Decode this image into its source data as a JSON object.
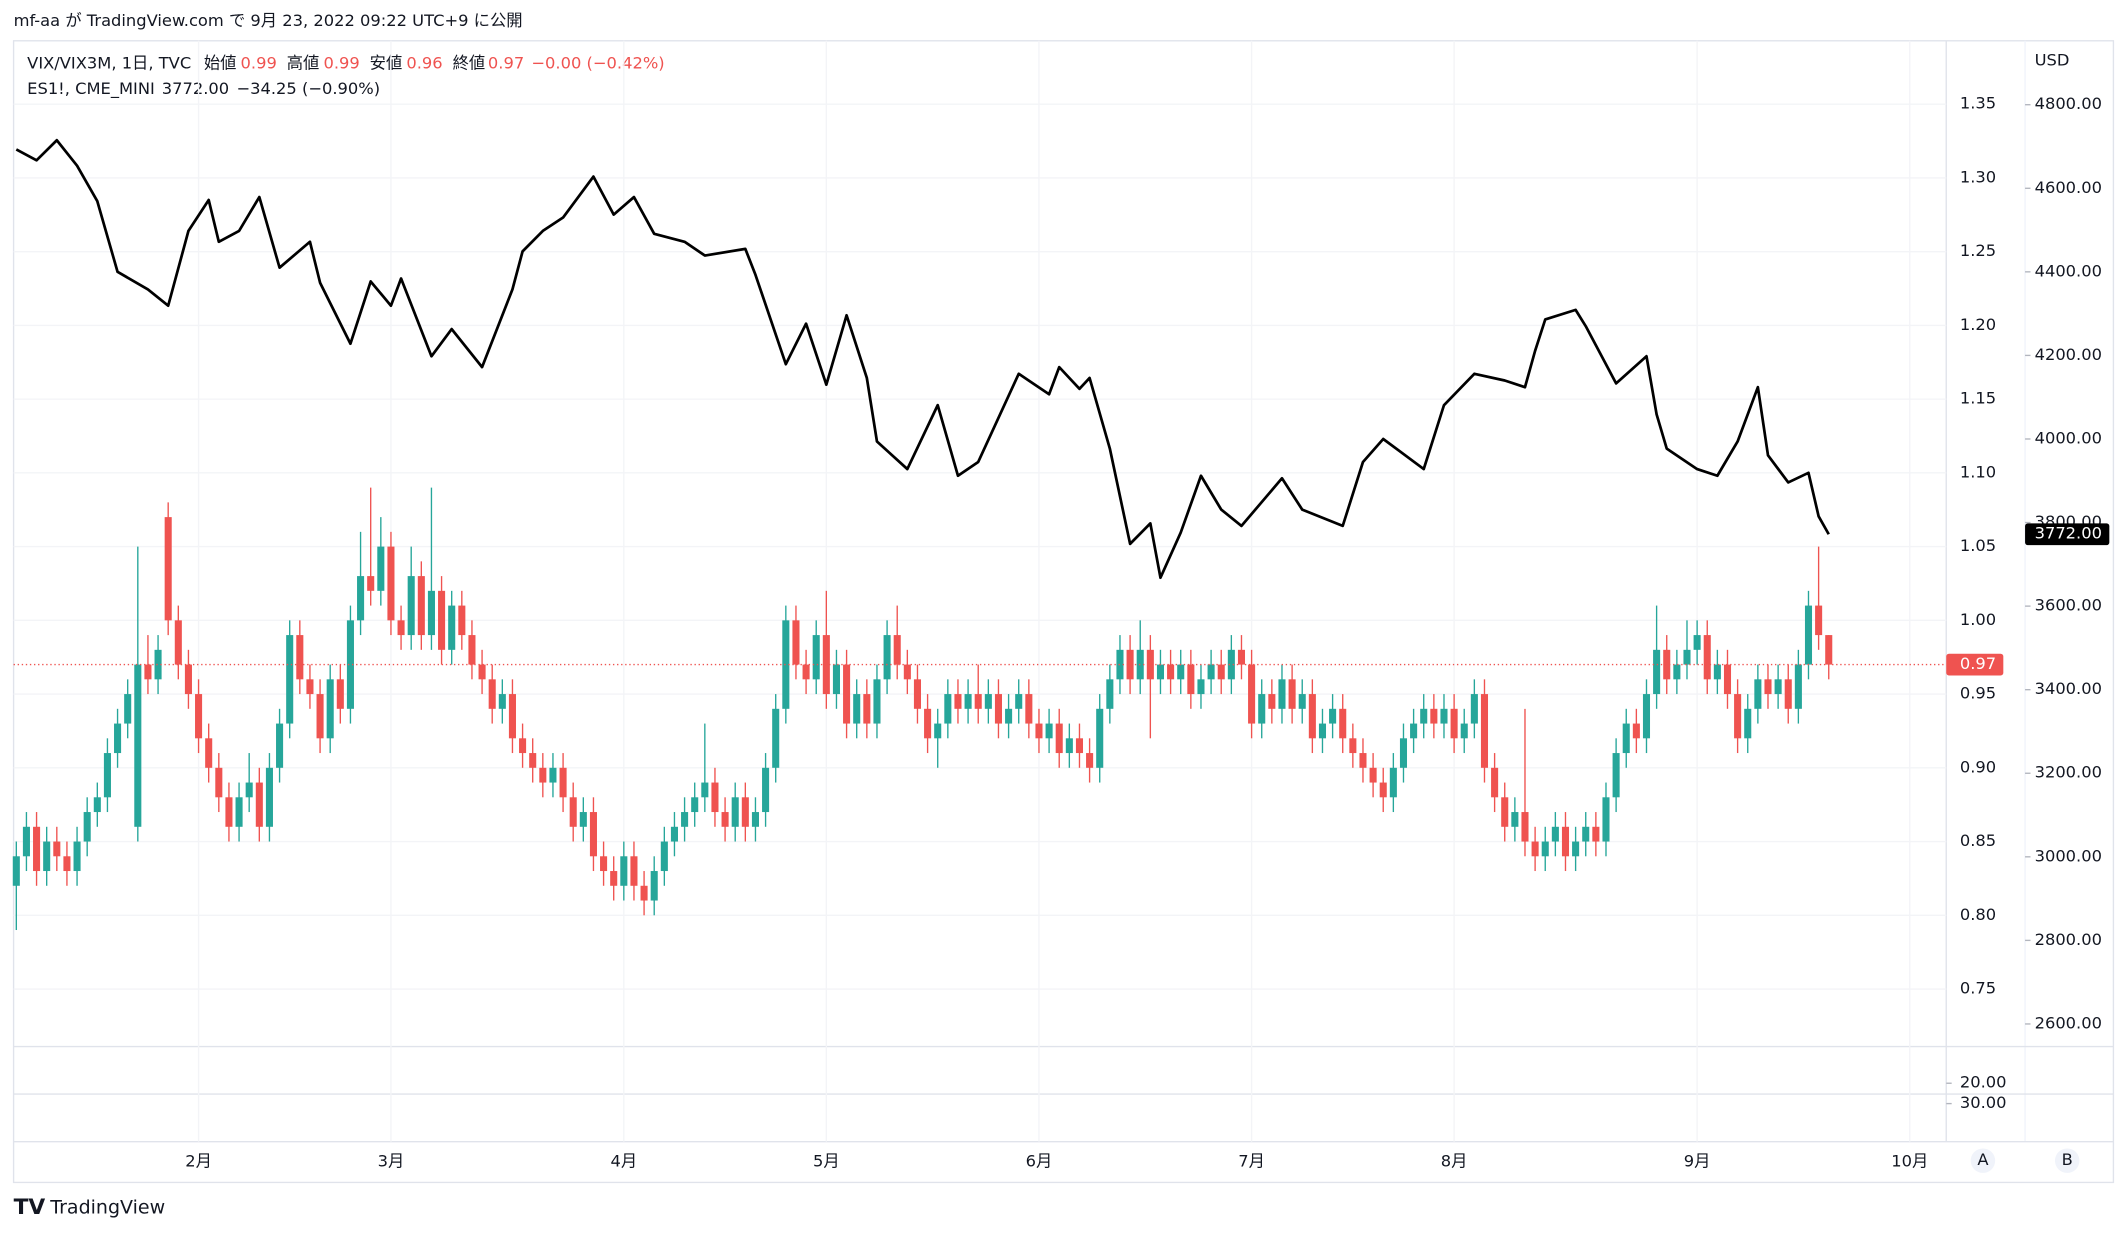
{
  "header": {
    "publish": "mf-aa が TradingView.com で 9月 23, 2022 09:22 UTC+9 に公開",
    "brand": "TradingView",
    "buttons": [
      "A",
      "B"
    ]
  },
  "chart_data": {
    "type": "candlestick",
    "legend": {
      "open": "始値",
      "high": "高値",
      "low": "安値",
      "close": "終値",
      "change": "−0.00 (−0.42%)"
    },
    "name": "VIX/VIX3M, 1日, TVC",
    "up_color": "#26a69a",
    "down_color": "#ef5350",
    "axis_label": "USD",
    "ylim": [
      0.711,
      1.393
    ],
    "yticks": [
      {
        "value": 0.75,
        "label": "0.75"
      },
      {
        "value": 0.8,
        "label": "0.80"
      },
      {
        "value": 0.85,
        "label": "0.85"
      },
      {
        "value": 0.9,
        "label": "0.90"
      },
      {
        "value": 0.95,
        "label": "0.95"
      },
      {
        "value": 1.0,
        "label": "1.00"
      },
      {
        "value": 1.05,
        "label": "1.05"
      },
      {
        "value": 1.1,
        "label": "1.10"
      },
      {
        "value": 1.15,
        "label": "1.15"
      },
      {
        "value": 1.2,
        "label": "1.20"
      },
      {
        "value": 1.25,
        "label": "1.25"
      },
      {
        "value": 1.3,
        "label": "1.30"
      },
      {
        "value": 1.35,
        "label": "1.35"
      }
    ],
    "y2lim": [
      2546,
      4953
    ],
    "y2ticks": [
      {
        "value": 2600,
        "label": "2600.00"
      },
      {
        "value": 2800,
        "label": "2800.00"
      },
      {
        "value": 3000,
        "label": "3000.00"
      },
      {
        "value": 3200,
        "label": "3200.00"
      },
      {
        "value": 3400,
        "label": "3400.00"
      },
      {
        "value": 3600,
        "label": "3600.00"
      },
      {
        "value": 3800,
        "label": "3800.00"
      },
      {
        "value": 4000,
        "label": "4000.00"
      },
      {
        "value": 4200,
        "label": "4200.00"
      },
      {
        "value": 4400,
        "label": "4400.00"
      },
      {
        "value": 4600,
        "label": "4600.00"
      },
      {
        "value": 4800,
        "label": "4800.00"
      }
    ],
    "xticks": [
      {
        "value": 18,
        "label": "2月"
      },
      {
        "value": 37,
        "label": "3月"
      },
      {
        "value": 60,
        "label": "4月"
      },
      {
        "value": 80,
        "label": "5月"
      },
      {
        "value": 101,
        "label": "6月"
      },
      {
        "value": 122,
        "label": "7月"
      },
      {
        "value": 142,
        "label": "8月"
      },
      {
        "value": 166,
        "label": "9月"
      },
      {
        "value": 187,
        "label": "10月"
      }
    ],
    "candles": [
      [
        0.82,
        0.85,
        0.79,
        0.84
      ],
      [
        0.84,
        0.87,
        0.83,
        0.86
      ],
      [
        0.86,
        0.87,
        0.82,
        0.83
      ],
      [
        0.83,
        0.86,
        0.82,
        0.85
      ],
      [
        0.85,
        0.86,
        0.83,
        0.84
      ],
      [
        0.84,
        0.85,
        0.82,
        0.83
      ],
      [
        0.83,
        0.86,
        0.82,
        0.85
      ],
      [
        0.85,
        0.88,
        0.84,
        0.87
      ],
      [
        0.87,
        0.89,
        0.86,
        0.88
      ],
      [
        0.88,
        0.92,
        0.87,
        0.91
      ],
      [
        0.91,
        0.94,
        0.9,
        0.93
      ],
      [
        0.93,
        0.96,
        0.92,
        0.95
      ],
      [
        0.86,
        1.05,
        0.85,
        0.97
      ],
      [
        0.97,
        0.99,
        0.95,
        0.96
      ],
      [
        0.96,
        0.99,
        0.95,
        0.98
      ],
      [
        1.07,
        1.08,
        0.99,
        1.0
      ],
      [
        1.0,
        1.01,
        0.96,
        0.97
      ],
      [
        0.97,
        0.98,
        0.94,
        0.95
      ],
      [
        0.95,
        0.96,
        0.91,
        0.92
      ],
      [
        0.92,
        0.93,
        0.89,
        0.9
      ],
      [
        0.9,
        0.91,
        0.87,
        0.88
      ],
      [
        0.88,
        0.89,
        0.85,
        0.86
      ],
      [
        0.86,
        0.89,
        0.85,
        0.88
      ],
      [
        0.88,
        0.91,
        0.87,
        0.89
      ],
      [
        0.89,
        0.9,
        0.85,
        0.86
      ],
      [
        0.86,
        0.91,
        0.85,
        0.9
      ],
      [
        0.9,
        0.94,
        0.89,
        0.93
      ],
      [
        0.93,
        1.0,
        0.92,
        0.99
      ],
      [
        0.99,
        1.0,
        0.95,
        0.96
      ],
      [
        0.96,
        0.97,
        0.94,
        0.95
      ],
      [
        0.95,
        0.96,
        0.91,
        0.92
      ],
      [
        0.92,
        0.97,
        0.91,
        0.96
      ],
      [
        0.96,
        0.97,
        0.93,
        0.94
      ],
      [
        0.94,
        1.01,
        0.93,
        1.0
      ],
      [
        1.0,
        1.06,
        0.99,
        1.03
      ],
      [
        1.03,
        1.09,
        1.01,
        1.02
      ],
      [
        1.02,
        1.07,
        1.01,
        1.05
      ],
      [
        1.05,
        1.06,
        0.99,
        1.0
      ],
      [
        1.0,
        1.01,
        0.98,
        0.99
      ],
      [
        0.99,
        1.05,
        0.98,
        1.03
      ],
      [
        1.03,
        1.04,
        0.98,
        0.99
      ],
      [
        0.99,
        1.09,
        0.98,
        1.02
      ],
      [
        1.02,
        1.03,
        0.97,
        0.98
      ],
      [
        0.98,
        1.02,
        0.97,
        1.01
      ],
      [
        1.01,
        1.02,
        0.98,
        0.99
      ],
      [
        0.99,
        1.0,
        0.96,
        0.97
      ],
      [
        0.97,
        0.98,
        0.95,
        0.96
      ],
      [
        0.96,
        0.97,
        0.93,
        0.94
      ],
      [
        0.94,
        0.96,
        0.93,
        0.95
      ],
      [
        0.95,
        0.96,
        0.91,
        0.92
      ],
      [
        0.92,
        0.93,
        0.9,
        0.91
      ],
      [
        0.91,
        0.92,
        0.89,
        0.9
      ],
      [
        0.9,
        0.91,
        0.88,
        0.89
      ],
      [
        0.89,
        0.91,
        0.88,
        0.9
      ],
      [
        0.9,
        0.91,
        0.87,
        0.88
      ],
      [
        0.88,
        0.89,
        0.85,
        0.86
      ],
      [
        0.86,
        0.88,
        0.85,
        0.87
      ],
      [
        0.87,
        0.88,
        0.83,
        0.84
      ],
      [
        0.84,
        0.85,
        0.82,
        0.83
      ],
      [
        0.83,
        0.84,
        0.81,
        0.82
      ],
      [
        0.82,
        0.85,
        0.81,
        0.84
      ],
      [
        0.84,
        0.85,
        0.81,
        0.82
      ],
      [
        0.82,
        0.83,
        0.8,
        0.81
      ],
      [
        0.81,
        0.84,
        0.8,
        0.83
      ],
      [
        0.83,
        0.86,
        0.82,
        0.85
      ],
      [
        0.85,
        0.87,
        0.84,
        0.86
      ],
      [
        0.86,
        0.88,
        0.85,
        0.87
      ],
      [
        0.87,
        0.89,
        0.86,
        0.88
      ],
      [
        0.88,
        0.93,
        0.87,
        0.89
      ],
      [
        0.89,
        0.9,
        0.86,
        0.87
      ],
      [
        0.87,
        0.88,
        0.85,
        0.86
      ],
      [
        0.86,
        0.89,
        0.85,
        0.88
      ],
      [
        0.88,
        0.89,
        0.85,
        0.86
      ],
      [
        0.86,
        0.88,
        0.85,
        0.87
      ],
      [
        0.87,
        0.91,
        0.86,
        0.9
      ],
      [
        0.9,
        0.95,
        0.89,
        0.94
      ],
      [
        0.94,
        1.01,
        0.93,
        1.0
      ],
      [
        1.0,
        1.01,
        0.96,
        0.97
      ],
      [
        0.97,
        0.98,
        0.95,
        0.96
      ],
      [
        0.96,
        1.0,
        0.95,
        0.99
      ],
      [
        0.99,
        1.02,
        0.94,
        0.95
      ],
      [
        0.95,
        0.98,
        0.94,
        0.97
      ],
      [
        0.97,
        0.98,
        0.92,
        0.93
      ],
      [
        0.93,
        0.96,
        0.92,
        0.95
      ],
      [
        0.95,
        0.96,
        0.92,
        0.93
      ],
      [
        0.93,
        0.97,
        0.92,
        0.96
      ],
      [
        0.96,
        1.0,
        0.95,
        0.99
      ],
      [
        0.99,
        1.01,
        0.96,
        0.97
      ],
      [
        0.97,
        0.98,
        0.95,
        0.96
      ],
      [
        0.96,
        0.97,
        0.93,
        0.94
      ],
      [
        0.94,
        0.95,
        0.91,
        0.92
      ],
      [
        0.92,
        0.94,
        0.9,
        0.93
      ],
      [
        0.93,
        0.96,
        0.92,
        0.95
      ],
      [
        0.95,
        0.96,
        0.93,
        0.94
      ],
      [
        0.94,
        0.96,
        0.93,
        0.95
      ],
      [
        0.95,
        0.97,
        0.93,
        0.94
      ],
      [
        0.94,
        0.96,
        0.93,
        0.95
      ],
      [
        0.95,
        0.96,
        0.92,
        0.93
      ],
      [
        0.93,
        0.95,
        0.92,
        0.94
      ],
      [
        0.94,
        0.96,
        0.93,
        0.95
      ],
      [
        0.95,
        0.96,
        0.92,
        0.93
      ],
      [
        0.93,
        0.94,
        0.91,
        0.92
      ],
      [
        0.92,
        0.94,
        0.91,
        0.93
      ],
      [
        0.93,
        0.94,
        0.9,
        0.91
      ],
      [
        0.91,
        0.93,
        0.9,
        0.92
      ],
      [
        0.92,
        0.93,
        0.9,
        0.91
      ],
      [
        0.91,
        0.92,
        0.89,
        0.9
      ],
      [
        0.9,
        0.95,
        0.89,
        0.94
      ],
      [
        0.94,
        0.97,
        0.93,
        0.96
      ],
      [
        0.96,
        0.99,
        0.95,
        0.98
      ],
      [
        0.98,
        0.99,
        0.95,
        0.96
      ],
      [
        0.96,
        1.0,
        0.95,
        0.98
      ],
      [
        0.98,
        0.99,
        0.92,
        0.96
      ],
      [
        0.96,
        0.98,
        0.95,
        0.97
      ],
      [
        0.97,
        0.98,
        0.95,
        0.96
      ],
      [
        0.96,
        0.98,
        0.95,
        0.97
      ],
      [
        0.97,
        0.98,
        0.94,
        0.95
      ],
      [
        0.95,
        0.97,
        0.94,
        0.96
      ],
      [
        0.96,
        0.98,
        0.95,
        0.97
      ],
      [
        0.97,
        0.98,
        0.95,
        0.96
      ],
      [
        0.96,
        0.99,
        0.95,
        0.98
      ],
      [
        0.98,
        0.99,
        0.96,
        0.97
      ],
      [
        0.97,
        0.98,
        0.92,
        0.93
      ],
      [
        0.93,
        0.96,
        0.92,
        0.95
      ],
      [
        0.95,
        0.96,
        0.93,
        0.94
      ],
      [
        0.94,
        0.97,
        0.93,
        0.96
      ],
      [
        0.96,
        0.97,
        0.93,
        0.94
      ],
      [
        0.94,
        0.96,
        0.93,
        0.95
      ],
      [
        0.95,
        0.96,
        0.91,
        0.92
      ],
      [
        0.92,
        0.94,
        0.91,
        0.93
      ],
      [
        0.93,
        0.95,
        0.92,
        0.94
      ],
      [
        0.94,
        0.95,
        0.91,
        0.92
      ],
      [
        0.92,
        0.93,
        0.9,
        0.91
      ],
      [
        0.91,
        0.92,
        0.89,
        0.9
      ],
      [
        0.9,
        0.91,
        0.88,
        0.89
      ],
      [
        0.89,
        0.9,
        0.87,
        0.88
      ],
      [
        0.88,
        0.91,
        0.87,
        0.9
      ],
      [
        0.9,
        0.93,
        0.89,
        0.92
      ],
      [
        0.92,
        0.94,
        0.91,
        0.93
      ],
      [
        0.93,
        0.95,
        0.92,
        0.94
      ],
      [
        0.94,
        0.95,
        0.92,
        0.93
      ],
      [
        0.93,
        0.95,
        0.92,
        0.94
      ],
      [
        0.94,
        0.95,
        0.91,
        0.92
      ],
      [
        0.92,
        0.94,
        0.91,
        0.93
      ],
      [
        0.93,
        0.96,
        0.92,
        0.95
      ],
      [
        0.95,
        0.96,
        0.89,
        0.9
      ],
      [
        0.9,
        0.91,
        0.87,
        0.88
      ],
      [
        0.88,
        0.89,
        0.85,
        0.86
      ],
      [
        0.86,
        0.88,
        0.85,
        0.87
      ],
      [
        0.87,
        0.94,
        0.84,
        0.85
      ],
      [
        0.85,
        0.86,
        0.83,
        0.84
      ],
      [
        0.84,
        0.86,
        0.83,
        0.85
      ],
      [
        0.85,
        0.87,
        0.84,
        0.86
      ],
      [
        0.86,
        0.87,
        0.83,
        0.84
      ],
      [
        0.84,
        0.86,
        0.83,
        0.85
      ],
      [
        0.85,
        0.87,
        0.84,
        0.86
      ],
      [
        0.86,
        0.87,
        0.84,
        0.85
      ],
      [
        0.85,
        0.89,
        0.84,
        0.88
      ],
      [
        0.88,
        0.92,
        0.87,
        0.91
      ],
      [
        0.91,
        0.94,
        0.9,
        0.93
      ],
      [
        0.93,
        0.94,
        0.91,
        0.92
      ],
      [
        0.92,
        0.96,
        0.91,
        0.95
      ],
      [
        0.95,
        1.01,
        0.94,
        0.98
      ],
      [
        0.98,
        0.99,
        0.95,
        0.96
      ],
      [
        0.96,
        0.98,
        0.95,
        0.97
      ],
      [
        0.97,
        1.0,
        0.96,
        0.98
      ],
      [
        0.98,
        1.0,
        0.97,
        0.99
      ],
      [
        0.99,
        1.0,
        0.95,
        0.96
      ],
      [
        0.96,
        0.98,
        0.95,
        0.97
      ],
      [
        0.97,
        0.98,
        0.94,
        0.95
      ],
      [
        0.95,
        0.96,
        0.91,
        0.92
      ],
      [
        0.92,
        0.95,
        0.91,
        0.94
      ],
      [
        0.94,
        0.97,
        0.93,
        0.96
      ],
      [
        0.96,
        0.97,
        0.94,
        0.95
      ],
      [
        0.95,
        0.97,
        0.94,
        0.96
      ],
      [
        0.96,
        0.97,
        0.93,
        0.94
      ],
      [
        0.94,
        0.98,
        0.93,
        0.97
      ],
      [
        0.97,
        1.02,
        0.96,
        1.01
      ],
      [
        1.01,
        1.05,
        0.98,
        0.99
      ],
      [
        0.99,
        0.99,
        0.96,
        0.97
      ]
    ],
    "overlay": {
      "type": "line",
      "name": "ES1!, CME_MINI",
      "color": "#000000",
      "axis": "y2",
      "change": "−34.25 (−0.90%)",
      "last_label": "3772.00",
      "x": [
        0,
        2,
        4,
        6,
        8,
        10,
        13,
        15,
        17,
        19,
        20,
        22,
        24,
        26,
        29,
        30,
        33,
        35,
        37,
        38,
        41,
        43,
        46,
        49,
        50,
        52,
        54,
        57,
        59,
        61,
        63,
        66,
        68,
        72,
        73,
        76,
        78,
        80,
        82,
        84,
        85,
        88,
        91,
        93,
        95,
        99,
        102,
        103,
        105,
        106,
        108,
        110,
        112,
        113,
        115,
        117,
        119,
        121,
        125,
        127,
        131,
        133,
        135,
        139,
        141,
        144,
        147,
        149,
        150,
        151,
        154,
        155,
        158,
        161,
        162,
        163,
        166,
        168,
        170,
        172,
        173,
        175,
        177,
        178,
        179
      ],
      "values": [
        4693,
        4667,
        4715,
        4654,
        4569,
        4400,
        4358,
        4319,
        4498,
        4572,
        4472,
        4498,
        4579,
        4410,
        4472,
        4374,
        4228,
        4377,
        4319,
        4384,
        4198,
        4263,
        4172,
        4358,
        4449,
        4498,
        4530,
        4628,
        4537,
        4579,
        4491,
        4472,
        4439,
        4455,
        4393,
        4179,
        4276,
        4130,
        4296,
        4146,
        3994,
        3928,
        4081,
        3912,
        3945,
        4156,
        4107,
        4172,
        4120,
        4146,
        3977,
        3749,
        3798,
        3668,
        3776,
        3912,
        3831,
        3792,
        3906,
        3831,
        3792,
        3945,
        4000,
        3928,
        4081,
        4156,
        4140,
        4124,
        4211,
        4286,
        4309,
        4270,
        4133,
        4198,
        4059,
        3977,
        3928,
        3912,
        3994,
        4124,
        3961,
        3896,
        3919,
        3815,
        3772
      ]
    },
    "lower_pane": {
      "ylim": [
        5.3,
        48.7
      ],
      "inverted": true,
      "yticks": [
        {
          "value": 20,
          "label": "20.00"
        },
        {
          "value": 30,
          "label": "30.00"
        }
      ]
    }
  }
}
